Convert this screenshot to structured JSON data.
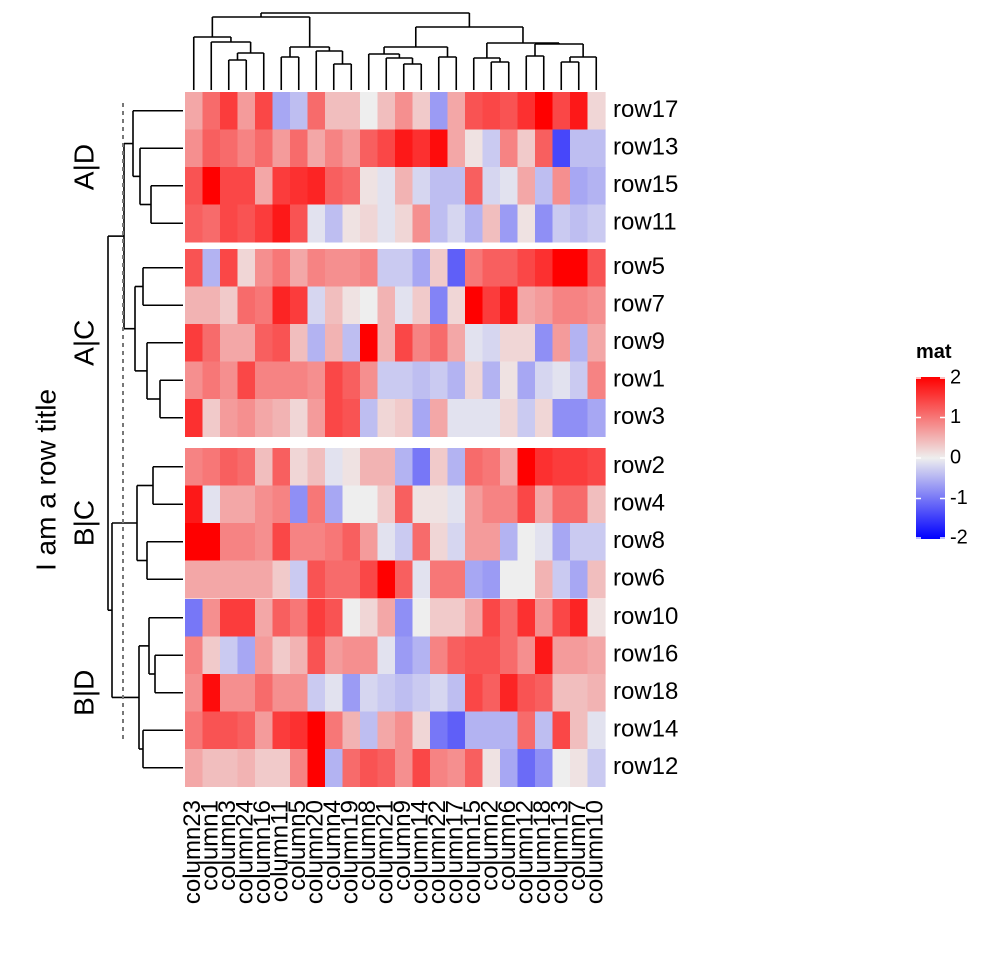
{
  "chart_data": {
    "type": "heatmap",
    "row_title": "I am a row title",
    "columns": [
      "column23",
      "column1",
      "column3",
      "column24",
      "column16",
      "column11",
      "column5",
      "column20",
      "column4",
      "column19",
      "column8",
      "column21",
      "column9",
      "column14",
      "column22",
      "column17",
      "column15",
      "column2",
      "column6",
      "column12",
      "column18",
      "column13",
      "column7",
      "column10"
    ],
    "row_slices": [
      {
        "label": "A|D",
        "rows": [
          "row17",
          "row13",
          "row15",
          "row11"
        ]
      },
      {
        "label": "A|C",
        "rows": [
          "row5",
          "row7",
          "row9",
          "row1",
          "row3"
        ]
      },
      {
        "label": "B|C",
        "rows": [
          "row2",
          "row4",
          "row8",
          "row6"
        ]
      },
      {
        "label": "B|D",
        "rows": [
          "row10",
          "row16",
          "row18",
          "row14",
          "row12"
        ]
      }
    ],
    "values": [
      [
        0.6,
        1.1,
        1.5,
        0.7,
        1.4,
        -0.6,
        -0.4,
        1.1,
        0.4,
        0.4,
        0,
        0.4,
        0.8,
        0.3,
        -0.7,
        0.6,
        1.3,
        1.4,
        1.3,
        1.6,
        2.3,
        1.4,
        1.8,
        0.2
      ],
      [
        0.8,
        1.2,
        1.1,
        0.9,
        1.1,
        0.7,
        1.1,
        0.6,
        0.9,
        0.7,
        1.2,
        1.4,
        1.8,
        1.6,
        1.9,
        0.6,
        0.1,
        -0.3,
        0.9,
        0.3,
        1.2,
        -1.4,
        -0.4,
        -0.4
      ],
      [
        1.3,
        2.1,
        1.4,
        1.4,
        0.6,
        1.5,
        1.6,
        1.7,
        1.2,
        1.1,
        0.1,
        -0.1,
        0.5,
        -0.2,
        -0.4,
        -0.4,
        1.2,
        -0.2,
        -0.1,
        0.6,
        -0.4,
        0.8,
        -0.6,
        -0.5
      ],
      [
        1.2,
        1.1,
        1.4,
        1.3,
        1.5,
        1.8,
        1.3,
        -0.1,
        -0.4,
        0.1,
        0.2,
        -0.1,
        0.2,
        0.8,
        -0.4,
        -0.2,
        -0.5,
        0.4,
        -0.7,
        0.1,
        -0.8,
        -0.3,
        -0.4,
        -0.3
      ],
      [
        1.3,
        -0.5,
        1.4,
        0.2,
        0.8,
        1.0,
        0.6,
        0.9,
        0.8,
        0.8,
        0.9,
        -0.3,
        -0.3,
        -0.6,
        0.3,
        -1.2,
        1.0,
        1.2,
        1.2,
        1.4,
        1.6,
        2.1,
        2.1,
        1.3
      ],
      [
        0.5,
        0.5,
        0.3,
        1.1,
        1.0,
        1.7,
        1.5,
        -0.2,
        0.4,
        0.1,
        0,
        0.5,
        -0.1,
        0.3,
        -0.9,
        0.2,
        2.1,
        1.5,
        1.8,
        0.6,
        0.7,
        0.9,
        0.9,
        0.8
      ],
      [
        1.5,
        1.1,
        0.6,
        0.6,
        1.2,
        1.3,
        0.4,
        -0.5,
        0.5,
        -0.4,
        2.0,
        0.5,
        1.4,
        0.9,
        1.1,
        0.6,
        -0.1,
        -0.2,
        0.2,
        0.2,
        -0.8,
        0.7,
        -0.5,
        0.6
      ],
      [
        0.8,
        1.0,
        0.8,
        1.4,
        0.9,
        0.9,
        0.9,
        0.8,
        1.4,
        1.2,
        0.8,
        -0.3,
        -0.3,
        -0.4,
        -0.3,
        -0.5,
        0.2,
        -0.5,
        0.1,
        -0.6,
        -0.2,
        -0.1,
        -0.3,
        0.9
      ],
      [
        1.6,
        0.3,
        0.7,
        0.8,
        0.6,
        0.5,
        0.2,
        0.7,
        1.4,
        1.3,
        -0.4,
        0.2,
        0.3,
        -0.6,
        0.6,
        -0.1,
        -0.1,
        -0.1,
        0.2,
        -0.3,
        0.2,
        -0.8,
        -0.8,
        -0.6
      ],
      [
        0.9,
        1.0,
        1.2,
        1.1,
        0.4,
        1.2,
        0.2,
        0.4,
        -0.1,
        0.1,
        0.5,
        0.5,
        -0.5,
        -1.0,
        0.3,
        -0.5,
        1.1,
        1.0,
        0.6,
        2.1,
        1.6,
        1.5,
        1.5,
        1.4
      ],
      [
        1.8,
        -0.1,
        0.6,
        0.6,
        0.8,
        0.9,
        -0.8,
        1.0,
        -0.6,
        0,
        0,
        0.3,
        1.2,
        0.1,
        0.1,
        -0.1,
        0.7,
        0.9,
        0.9,
        1.4,
        0.6,
        1.1,
        1.1,
        0.4
      ],
      [
        2.0,
        2.2,
        0.9,
        0.9,
        0.8,
        1.4,
        0.9,
        0.9,
        1.0,
        1.2,
        0.7,
        -0.1,
        -0.3,
        1.1,
        0.2,
        -0.2,
        0.7,
        0.7,
        -0.5,
        0,
        -0.1,
        -0.6,
        -0.3,
        -0.3
      ],
      [
        0.6,
        0.6,
        0.6,
        0.6,
        0.6,
        0.3,
        -0.3,
        1.3,
        1.1,
        1.1,
        1.4,
        2.0,
        1.2,
        -0.1,
        1.0,
        1.0,
        -0.6,
        -0.7,
        0,
        0,
        0.5,
        -0.3,
        -0.6,
        0.4
      ],
      [
        -1.0,
        0.8,
        1.5,
        1.5,
        0.6,
        1.2,
        1.0,
        1.5,
        1.3,
        0,
        0.2,
        0.6,
        -0.8,
        0,
        0.3,
        0.3,
        0.6,
        1.4,
        1.1,
        1.6,
        0.8,
        1.4,
        1.7,
        0.1
      ],
      [
        0.9,
        0.3,
        -0.3,
        -0.6,
        0.7,
        0.3,
        0.5,
        1.3,
        0.7,
        0.8,
        0.8,
        -0.1,
        -0.7,
        -0.5,
        0.9,
        1.2,
        1.3,
        1.3,
        1.1,
        0.8,
        1.8,
        0.7,
        0.7,
        0.6
      ],
      [
        0.8,
        1.9,
        0.8,
        0.8,
        1.1,
        0.8,
        0.8,
        -0.3,
        -0.1,
        -0.7,
        -0.2,
        -0.3,
        -0.4,
        -0.3,
        -0.2,
        -0.4,
        1.4,
        1.2,
        1.7,
        1.3,
        1.2,
        0.4,
        0.4,
        0.5
      ],
      [
        1.0,
        1.3,
        1.3,
        1.2,
        0.7,
        1.5,
        1.6,
        2.0,
        1.0,
        0.5,
        -0.4,
        0.6,
        0.8,
        0.2,
        -1.0,
        -1.2,
        -0.5,
        -0.5,
        -0.5,
        1.1,
        -0.4,
        1.4,
        0.4,
        -0.1
      ],
      [
        0.6,
        0.4,
        0.4,
        0.5,
        0.3,
        0.3,
        0.9,
        2.0,
        -0.5,
        1.1,
        1.3,
        1.2,
        0.8,
        1.4,
        0.9,
        0.8,
        1.2,
        0.1,
        -0.6,
        -1.1,
        -0.8,
        0,
        0.1,
        -0.3
      ]
    ],
    "colorbar": {
      "title": "mat",
      "ticks": [
        "2",
        "1",
        "0",
        "-1",
        "-2"
      ],
      "colors": {
        "low": "#0000FF",
        "mid": "#EEEEEE",
        "high": "#FF0000"
      },
      "range": [
        -2,
        2
      ]
    },
    "row_dendrogram": true,
    "column_dendrogram": true,
    "row_cut_line": true
  }
}
